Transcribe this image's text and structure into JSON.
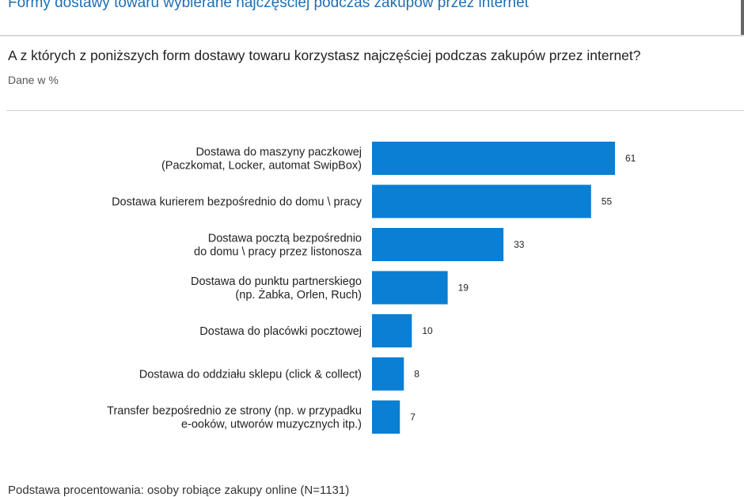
{
  "header": {
    "title": "Formy dostawy towaru wybierane najczęściej podczas zakupów przez internet"
  },
  "question": "A z których z poniższych form dostawy towaru korzystasz najczęściej podczas zakupów przez internet?",
  "subtitle": "Dane w %",
  "footer": {
    "note": "Podstawa procentowania: osoby robiące zakupy online (N=1131)"
  },
  "colors": {
    "bar": "#0a7fd4",
    "title": "#1f6fb5"
  },
  "chart_data": {
    "type": "bar",
    "orientation": "horizontal",
    "categories": [
      [
        "Dostawa do maszyny paczkowej",
        "(Paczkomat, Locker, automat SwipBox)"
      ],
      [
        "Dostawa kurierem bezpośrednio do domu \\ pracy"
      ],
      [
        "Dostawa pocztą bezpośrednio",
        "do domu \\ pracy przez listonosza"
      ],
      [
        "Dostawa do punktu partnerskiego",
        "(np. Żabka, Orlen, Ruch)"
      ],
      [
        "Dostawa do placówki pocztowej"
      ],
      [
        "Dostawa do oddziału sklepu (click & collect)"
      ],
      [
        "Transfer bezpośrednio ze strony (np. w przypadku",
        "e-ooków, utworów muzycznych itp.)"
      ]
    ],
    "values": [
      61,
      55,
      33,
      19,
      10,
      8,
      7
    ],
    "unit": "%",
    "xlim": [
      0,
      61
    ],
    "grid": false,
    "legend": "none"
  }
}
